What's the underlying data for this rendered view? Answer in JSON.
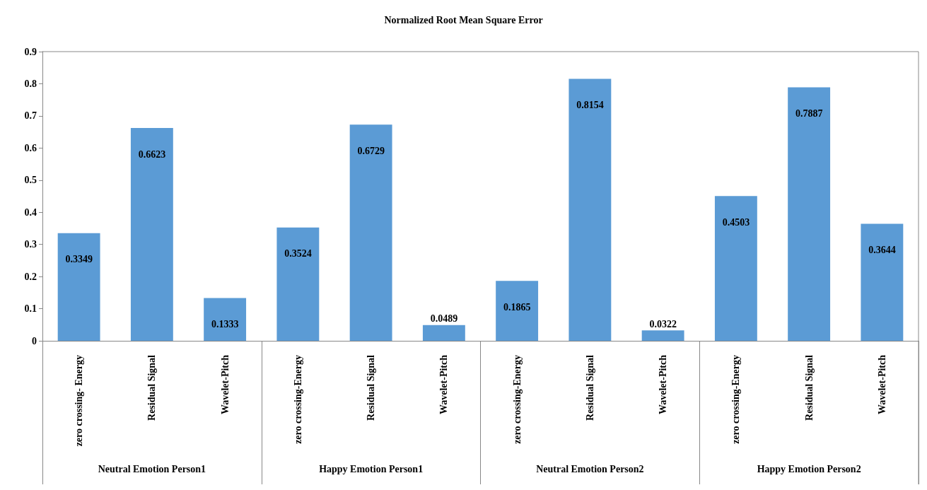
{
  "chart_data": {
    "type": "bar",
    "title": "Normalized Root Mean Square Error",
    "categories": [
      "zero crossing- Energy",
      "Residual Signal",
      "Wavelet-Pitch",
      "zero crossing-Energy",
      "Residual Signal",
      "Wavelet-Pitch",
      "zero crossing-Energy",
      "Residual Signal",
      "Wavelet-Pitch",
      "zero crossing-Energy",
      "Residual Signal",
      "Wavelet-Pitch"
    ],
    "values": [
      0.3349,
      0.6623,
      0.1333,
      0.3524,
      0.6729,
      0.0489,
      0.1865,
      0.8154,
      0.0322,
      0.4503,
      0.7887,
      0.3644
    ],
    "color": "#5b9bd5",
    "data_labels": true,
    "grid": false,
    "ylim": [
      0,
      0.9
    ],
    "yticks": [
      0,
      0.1,
      0.2,
      0.3,
      0.4,
      0.5,
      0.6,
      0.7,
      0.8,
      0.9
    ],
    "annotations": [
      "Neutral Emotion Person1",
      "Happy Emotion Person1",
      "Neutral Emotion Person2",
      "Happy Emotion Person2"
    ]
  }
}
